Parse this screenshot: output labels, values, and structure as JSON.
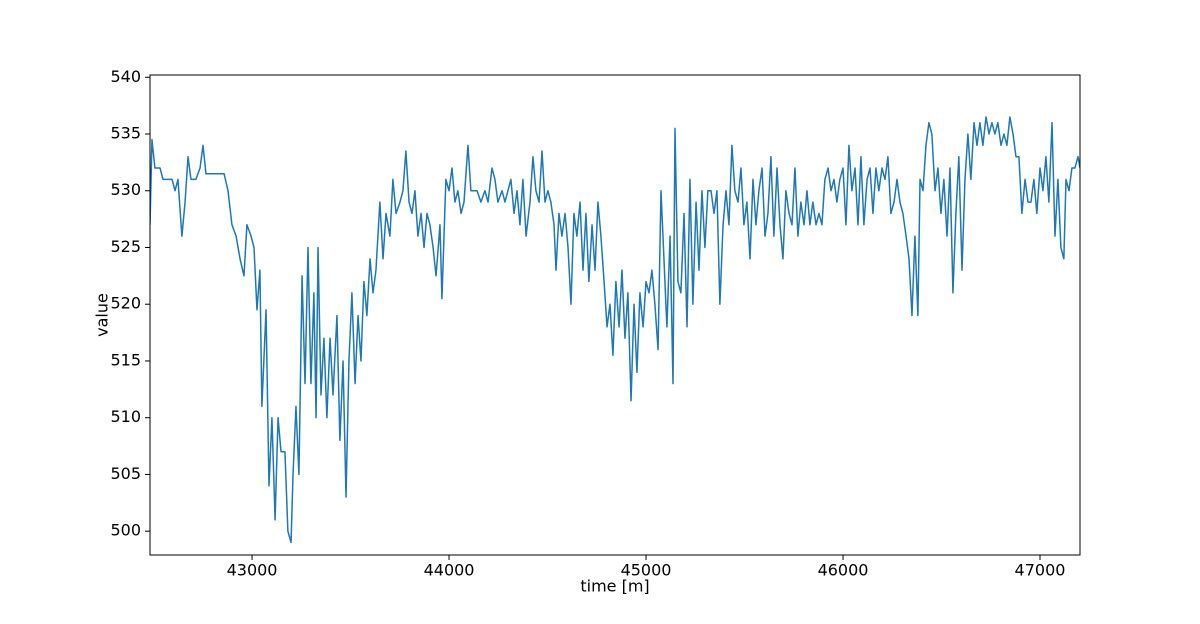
{
  "chart_data": {
    "type": "line",
    "xlabel": "time [m]",
    "ylabel": "value",
    "xlim": [
      42482,
      47203
    ],
    "ylim": [
      497.9,
      540.2
    ],
    "xticks": [
      43000,
      44000,
      45000,
      46000,
      47000
    ],
    "yticks": [
      500,
      505,
      510,
      515,
      520,
      525,
      530,
      535,
      540
    ],
    "grid": false,
    "series": [
      {
        "color": "#1f77b4",
        "x": [
          42482,
          42492,
          42507,
          42533,
          42548,
          42573,
          42594,
          42609,
          42624,
          42644,
          42660,
          42675,
          42690,
          42715,
          42736,
          42751,
          42766,
          42797,
          42827,
          42858,
          42878,
          42898,
          42919,
          42939,
          42959,
          42974,
          42995,
          43010,
          43025,
          43040,
          43050,
          43071,
          43086,
          43101,
          43117,
          43132,
          43147,
          43167,
          43182,
          43198,
          43208,
          43223,
          43238,
          43254,
          43269,
          43284,
          43299,
          43314,
          43325,
          43335,
          43350,
          43365,
          43380,
          43396,
          43411,
          43431,
          43446,
          43462,
          43477,
          43492,
          43507,
          43523,
          43538,
          43553,
          43568,
          43583,
          43599,
          43614,
          43629,
          43649,
          43665,
          43680,
          43700,
          43715,
          43731,
          43751,
          43766,
          43781,
          43797,
          43812,
          43827,
          43842,
          43858,
          43873,
          43888,
          43903,
          43919,
          43934,
          43954,
          43964,
          43984,
          44000,
          44015,
          44030,
          44045,
          44061,
          44076,
          44096,
          44111,
          44127,
          44142,
          44162,
          44182,
          44198,
          44218,
          44233,
          44248,
          44269,
          44284,
          44299,
          44314,
          44330,
          44345,
          44360,
          44375,
          44391,
          44411,
          44426,
          44441,
          44457,
          44472,
          44487,
          44502,
          44517,
          44533,
          44543,
          44558,
          44573,
          44589,
          44604,
          44619,
          44634,
          44649,
          44665,
          44680,
          44695,
          44710,
          44726,
          44741,
          44756,
          44771,
          44787,
          44802,
          44817,
          44832,
          44847,
          44863,
          44878,
          44893,
          44908,
          44924,
          44939,
          44954,
          44969,
          44985,
          45000,
          45015,
          45030,
          45045,
          45061,
          45076,
          45091,
          45106,
          45122,
          45137,
          45147,
          45162,
          45177,
          45193,
          45208,
          45223,
          45238,
          45254,
          45269,
          45284,
          45299,
          45314,
          45330,
          45345,
          45360,
          45375,
          45391,
          45406,
          45421,
          45436,
          45451,
          45467,
          45482,
          45497,
          45512,
          45528,
          45543,
          45558,
          45573,
          45589,
          45604,
          45619,
          45634,
          45649,
          45665,
          45680,
          45695,
          45710,
          45726,
          45741,
          45756,
          45771,
          45786,
          45802,
          45817,
          45832,
          45847,
          45863,
          45878,
          45893,
          45908,
          45924,
          45939,
          45954,
          45969,
          45984,
          46000,
          46015,
          46030,
          46045,
          46061,
          46076,
          46091,
          46106,
          46122,
          46137,
          46152,
          46167,
          46182,
          46198,
          46213,
          46228,
          46243,
          46259,
          46274,
          46289,
          46304,
          46320,
          46335,
          46350,
          46365,
          46380,
          46391,
          46406,
          46421,
          46436,
          46451,
          46467,
          46482,
          46497,
          46512,
          46528,
          46543,
          46558,
          46573,
          46588,
          46604,
          46619,
          46634,
          46649,
          46665,
          46680,
          46695,
          46710,
          46726,
          46741,
          46756,
          46771,
          46786,
          46802,
          46817,
          46832,
          46847,
          46863,
          46878,
          46893,
          46908,
          46924,
          46939,
          46954,
          46969,
          46984,
          47000,
          47015,
          47030,
          47045,
          47061,
          47076,
          47091,
          47106,
          47121,
          47132,
          47147,
          47162,
          47177,
          47193,
          47203
        ],
        "values": [
          527,
          534.5,
          532,
          532,
          531,
          531,
          531,
          530,
          531,
          526,
          529,
          533,
          531,
          531,
          532,
          534,
          531.5,
          531.5,
          531.5,
          531.5,
          530,
          527,
          526,
          524,
          522.5,
          527,
          526,
          525,
          519.5,
          523,
          511,
          519.5,
          504,
          510,
          501,
          510,
          507,
          507,
          500,
          499,
          505,
          511,
          505,
          522.5,
          513,
          525,
          513,
          521,
          510,
          525,
          512,
          517,
          510,
          517,
          512,
          519,
          508,
          515,
          503,
          515,
          521,
          513,
          519,
          515,
          522,
          519,
          524,
          521,
          523,
          529,
          524,
          528,
          526,
          531,
          528,
          529,
          530,
          533.5,
          529,
          528,
          530,
          526,
          528,
          525,
          528,
          527,
          525,
          522.5,
          527,
          520.5,
          531,
          530,
          532,
          529,
          530,
          528,
          529,
          534,
          530,
          530,
          530,
          529,
          530,
          529,
          532,
          531,
          529,
          530,
          529,
          530,
          531,
          528,
          530,
          527,
          531,
          526,
          529,
          533,
          530,
          529,
          533.5,
          529,
          530,
          529,
          527,
          523,
          528,
          526,
          528,
          525,
          520,
          528,
          526,
          529,
          523,
          528,
          522,
          527,
          523,
          529,
          526,
          522,
          518,
          520,
          515.5,
          522,
          518,
          523,
          517,
          521,
          511.5,
          520,
          514,
          521,
          518,
          522,
          521,
          523,
          520,
          516,
          530,
          524,
          518,
          526,
          513,
          535.5,
          522,
          521,
          528,
          518,
          531,
          520,
          529,
          523,
          530,
          525,
          530,
          530,
          528,
          530,
          520,
          527,
          530,
          527,
          534,
          530,
          529,
          532,
          527,
          529,
          524,
          531,
          527,
          530,
          532,
          526,
          528,
          533,
          526,
          532,
          527,
          524,
          530,
          528,
          527,
          532,
          526,
          529,
          527,
          530,
          527,
          529,
          527,
          528,
          527,
          531,
          532,
          530,
          531,
          529,
          531,
          532,
          527,
          534,
          530,
          532,
          527,
          533,
          527,
          531,
          532,
          528,
          532,
          530,
          532,
          531,
          533,
          528,
          529,
          531,
          529,
          528,
          526,
          524,
          519,
          526,
          519,
          531,
          530,
          534,
          536,
          535,
          530,
          532,
          528,
          531,
          526,
          532,
          521,
          528,
          533,
          523,
          531,
          535,
          531,
          536,
          534,
          536,
          534,
          536.5,
          535,
          536,
          535,
          536,
          534,
          535,
          534,
          536.5,
          535,
          533,
          533,
          528,
          531,
          529,
          529,
          531,
          528,
          532,
          530,
          533,
          529,
          536,
          526,
          531,
          525,
          524,
          531,
          530,
          532,
          532,
          533,
          532
        ]
      }
    ]
  }
}
